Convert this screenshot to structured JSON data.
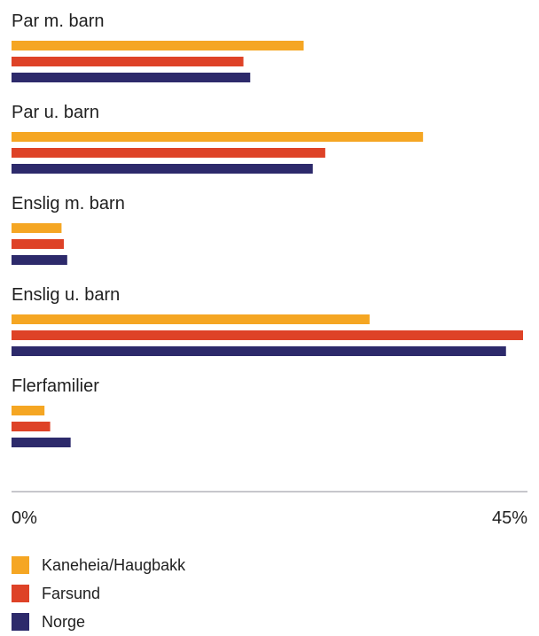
{
  "chart_data": {
    "type": "bar",
    "orientation": "horizontal",
    "categories": [
      "Par m. barn",
      "Par u. barn",
      "Enslig m. barn",
      "Enslig u. barn",
      "Flerfamilier"
    ],
    "series": [
      {
        "name": "Kaneheia/Haugbakk",
        "color": "#F5A623",
        "values": [
          25.7,
          36.2,
          4.4,
          31.5,
          2.9
        ]
      },
      {
        "name": "Farsund",
        "color": "#DE4227",
        "values": [
          20.4,
          27.6,
          4.6,
          45.0,
          3.4
        ]
      },
      {
        "name": "Norge",
        "color": "#2D2A6B",
        "values": [
          21.0,
          26.5,
          4.9,
          43.5,
          5.2
        ]
      }
    ],
    "xlim": [
      0,
      45
    ],
    "xticks": [
      "0%",
      "45%"
    ],
    "grid": false,
    "legend_position": "bottom-left"
  }
}
